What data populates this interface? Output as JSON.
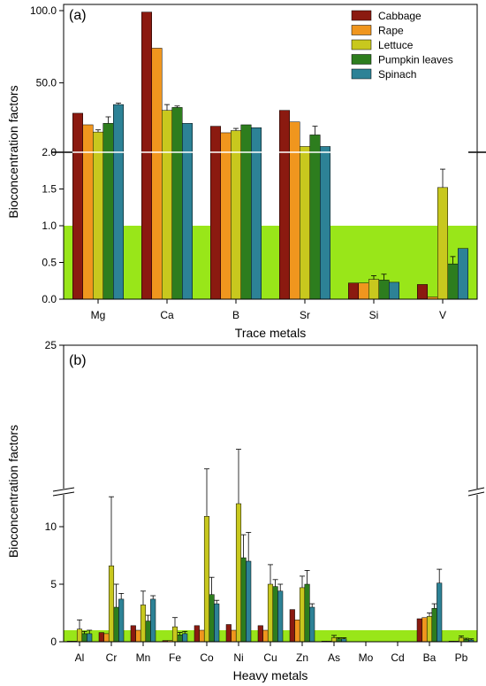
{
  "figure": {
    "series_colors": {
      "Cabbage": "#8B1A10",
      "Rape": "#F0961E",
      "Lettuce": "#C8C81E",
      "Pumpkin leaves": "#2D7D1E",
      "Spinach": "#2D8296"
    },
    "highlight_color": "#99E619"
  },
  "chart_data": [
    {
      "type": "bar",
      "panel_label": "(a)",
      "xlabel": "Trace metals",
      "ylabel": "Bioconcentration factors",
      "categories": [
        "Mg",
        "Ca",
        "B",
        "Sr",
        "Si",
        "V"
      ],
      "y_axis": "broken",
      "y_ticks": [
        "0.0",
        "0.5",
        "1.0",
        "1.5",
        "2.0",
        "50.0",
        "100.0"
      ],
      "ylim_lower": [
        0,
        2.0
      ],
      "ylim_upper": [
        2.0,
        100.0
      ],
      "highlight_below": 1.0,
      "legend_position": "top-right",
      "series": [
        {
          "name": "Cabbage",
          "values": [
            29.0,
            99.0,
            20.0,
            31.0,
            0.22,
            0.2
          ],
          "errors": [
            0,
            0,
            0,
            0,
            0,
            0
          ]
        },
        {
          "name": "Rape",
          "values": [
            21.0,
            74.0,
            15.5,
            23.0,
            0.22,
            0.03
          ],
          "errors": [
            0,
            0,
            0,
            0,
            0,
            0
          ]
        },
        {
          "name": "Lettuce",
          "values": [
            16.0,
            31.0,
            17.0,
            6.0,
            0.27,
            1.52
          ],
          "errors": [
            1.5,
            4.0,
            1.5,
            0,
            0.05,
            0.25
          ]
        },
        {
          "name": "Pumpkin leaves",
          "values": [
            22.0,
            33.0,
            21.0,
            14.0,
            0.26,
            0.48
          ],
          "errors": [
            4.5,
            1.0,
            0,
            6.0,
            0.08,
            0.1
          ]
        },
        {
          "name": "Spinach",
          "values": [
            35.0,
            22.0,
            19.0,
            6.0,
            0.23,
            0.69
          ],
          "errors": [
            1.0,
            0,
            0,
            0,
            0,
            0
          ]
        }
      ]
    },
    {
      "type": "bar",
      "panel_label": "(b)",
      "xlabel": "Heavy metals",
      "ylabel": "Bioconcentration factors",
      "categories": [
        "Al",
        "Cr",
        "Mn",
        "Fe",
        "Co",
        "Ni",
        "Cu",
        "Zn",
        "As",
        "Mo",
        "Cd",
        "Ba",
        "Pb"
      ],
      "y_axis": "broken",
      "y_ticks": [
        "0",
        "5",
        "10",
        "25"
      ],
      "highlight_below": 1.0,
      "series": [
        {
          "name": "Cabbage",
          "values": [
            0.05,
            0.8,
            1.4,
            0.1,
            1.4,
            1.5,
            1.4,
            2.8,
            0.05,
            0,
            0,
            2.0,
            0.05
          ],
          "errors": [
            0,
            0,
            0,
            0,
            0,
            0,
            0,
            0,
            0,
            0,
            0,
            0,
            0
          ]
        },
        {
          "name": "Rape",
          "values": [
            0.05,
            0.7,
            1.0,
            0.1,
            1.0,
            1.0,
            1.0,
            1.9,
            0.05,
            0,
            0,
            2.1,
            0.05
          ],
          "errors": [
            0,
            0,
            0,
            0,
            0,
            0,
            0,
            0,
            0,
            0,
            0,
            0,
            0
          ]
        },
        {
          "name": "Lettuce",
          "values": [
            1.1,
            6.6,
            3.2,
            1.3,
            10.9,
            12.0,
            5.0,
            4.7,
            0.35,
            0,
            0,
            2.2,
            0.35
          ],
          "errors": [
            0.8,
            6.0,
            1.2,
            0.8,
            4.0,
            4.5,
            1.7,
            1.0,
            0.2,
            0,
            0,
            0.3,
            0.15
          ]
        },
        {
          "name": "Pumpkin leaves",
          "values": [
            0.7,
            3.0,
            1.8,
            0.6,
            4.1,
            7.3,
            4.8,
            5.0,
            0.25,
            0,
            0,
            2.9,
            0.2
          ],
          "errors": [
            0.2,
            2.0,
            0.5,
            0.2,
            1.5,
            2.0,
            0.6,
            1.2,
            0.1,
            0,
            0,
            0.4,
            0.1
          ]
        },
        {
          "name": "Spinach",
          "values": [
            0.7,
            3.7,
            3.7,
            0.7,
            3.3,
            7.0,
            4.4,
            3.0,
            0.25,
            0,
            0,
            5.1,
            0.15
          ],
          "errors": [
            0.3,
            0.5,
            0.3,
            0.2,
            0.3,
            2.5,
            0.6,
            0.3,
            0.1,
            0,
            0,
            1.2,
            0.1
          ]
        }
      ]
    }
  ]
}
